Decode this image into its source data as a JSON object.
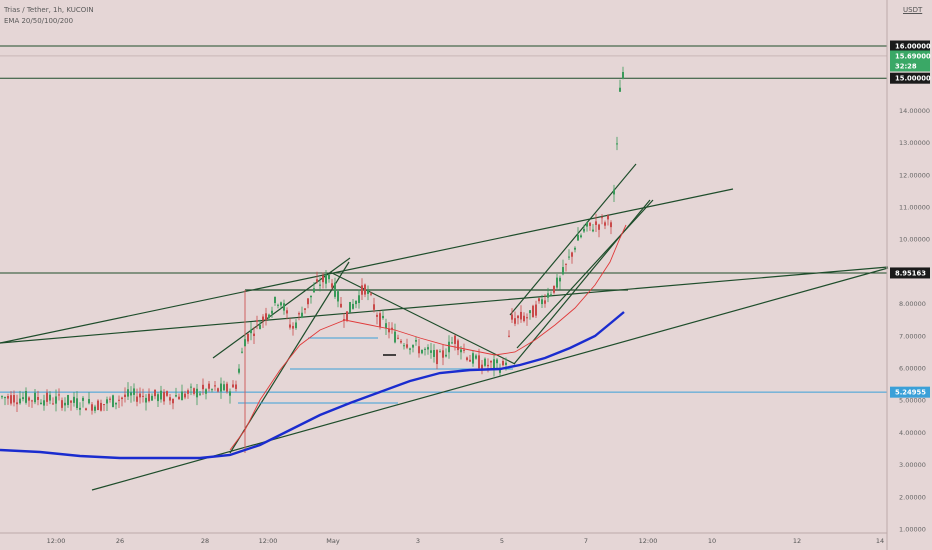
{
  "header": {
    "title": "Trias / Tether, 1h, KUCOIN",
    "indicator": "EMA 20/50/100/200"
  },
  "price_scale": {
    "unit": "USDT"
  },
  "colors": {
    "background": "#e5d6d6",
    "bull_candle": "#3a9a5a",
    "bear_candle": "#c94a4a",
    "ema_fast": "#e03a3a",
    "ema_slow": "#1a2ccf",
    "trendline": "#1e4d2b",
    "support_blue": "#3aa0d8"
  },
  "chart_data": {
    "type": "candlestick",
    "symbol": "Trias / Tether",
    "interval": "1h",
    "exchange": "KUCOIN",
    "ylim": [
      1.0,
      16.8
    ],
    "y_ticks": [
      "1.00000",
      "2.00000",
      "3.00000",
      "4.00000",
      "5.00000",
      "6.00000",
      "7.00000",
      "8.00000",
      "10.00000",
      "11.00000",
      "12.00000",
      "13.00000",
      "14.00000"
    ],
    "x_ticks": [
      "12:00",
      "26",
      "28",
      "12:00",
      "May",
      "3",
      "5",
      "7",
      "12:00",
      "10",
      "12",
      "14"
    ],
    "price_labels": [
      {
        "label": "16.00000",
        "price": 16.0,
        "style": "dark"
      },
      {
        "label": "15.69000",
        "price": 15.69,
        "style": "green"
      },
      {
        "label": "32:28",
        "price": 15.38,
        "style": "green-sub"
      },
      {
        "label": "15.00000",
        "price": 15.0,
        "style": "dark"
      },
      {
        "label": "8.95163",
        "price": 8.95163,
        "style": "dark"
      },
      {
        "label": "5.24955",
        "price": 5.24955,
        "style": "blue"
      }
    ],
    "horizontal_lines": [
      {
        "price": 16.0,
        "color": "trendline"
      },
      {
        "price": 15.0,
        "color": "trendline"
      },
      {
        "price": 8.95163,
        "color": "trendline"
      },
      {
        "price": 5.24955,
        "color": "support_blue"
      }
    ],
    "last_price": 15.69,
    "countdown": "32:28"
  }
}
